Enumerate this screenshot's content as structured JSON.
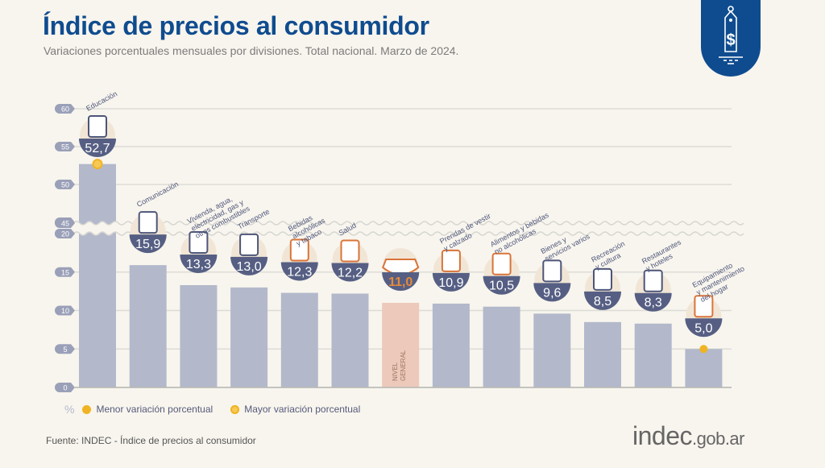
{
  "header": {
    "title": "Índice de precios al consumidor",
    "subtitle": "Variaciones porcentuales mensuales por divisiones. Total nacional. Marzo de 2024.",
    "badge_icon": "price-tag-dollar-icon"
  },
  "legend": {
    "unit": "%",
    "min_label": "Menor variación porcentual",
    "max_label": "Mayor variación porcentual"
  },
  "footer": {
    "source": "Fuente: INDEC - Índice de precios al consumidor",
    "logo_main": "indec",
    "logo_suffix": ".gob.ar"
  },
  "colors": {
    "title": "#0f4c8f",
    "bar": "#b3b9cb",
    "bar_general": "#ecc9bb",
    "bubble": "#565f83",
    "highlight_value": "#e58a3b",
    "marker": "#f0b323"
  },
  "chart_data": {
    "type": "bar",
    "title": "Índice de precios al consumidor",
    "subtitle": "Variaciones porcentuales mensuales por divisiones. Total nacional. Marzo de 2024.",
    "xlabel": "",
    "ylabel": "%",
    "ylim": [
      0,
      60
    ],
    "axis_break": [
      20,
      45
    ],
    "yticks": [
      0,
      5,
      10,
      15,
      20,
      45,
      50,
      55,
      60
    ],
    "grid": true,
    "legend_position": "bottom-left",
    "categories": [
      "Educación",
      "Comunicación",
      "Vivienda, agua, electricidad, gas y otros combustibles",
      "Transporte",
      "Bebidas alcohólicas y tabaco",
      "Salud",
      "NIVEL GENERAL",
      "Prendas de vestir y calzado",
      "Alimentos y bebidas no alcohólicas",
      "Bienes y servicios varios",
      "Recreación y cultura",
      "Restaurantes y hoteles",
      "Equipamiento y mantenimiento del hogar"
    ],
    "label_lines": [
      [
        "Educación"
      ],
      [
        "Comunicación"
      ],
      [
        "Vivienda, agua,",
        "electricidad, gas y",
        "otros combustibles"
      ],
      [
        "Transporte"
      ],
      [
        "Bebidas",
        "alcohólicas",
        "y tabaco"
      ],
      [
        "Salud"
      ],
      [
        "NIVEL",
        "GENERAL"
      ],
      [
        "Prendas de vestir",
        "y calzado"
      ],
      [
        "Alimentos y bebidas",
        "no alcohólicas"
      ],
      [
        "Bienes y",
        "servicios varios"
      ],
      [
        "Recreación",
        "y cultura"
      ],
      [
        "Restaurantes",
        "y hoteles"
      ],
      [
        "Equipamiento",
        "y mantenimiento",
        "del hogar"
      ]
    ],
    "values": [
      52.7,
      15.9,
      13.3,
      13.0,
      12.3,
      12.2,
      11.0,
      10.9,
      10.5,
      9.6,
      8.5,
      8.3,
      5.0
    ],
    "value_labels": [
      "52,7",
      "15,9",
      "13,3",
      "13,0",
      "12,3",
      "12,2",
      "11,0",
      "10,9",
      "10,5",
      "9,6",
      "8,5",
      "8,3",
      "5,0"
    ],
    "icons": [
      "notebook-pencil-icon",
      "smartphone-icon",
      "key-lightbulb-icon",
      "car-sube-card-icon",
      "wine-glass-cigarette-icon",
      "first-aid-kit-icon",
      "shopping-basket-icon",
      "tshirt-shoe-icon",
      "roast-chicken-icon",
      "comb-scissors-icon",
      "umbrella-sun-icon",
      "plate-cutlery-icon",
      "washing-machine-icon"
    ],
    "highlight_index": 6,
    "max_marker_index": 0,
    "min_marker_index": 12
  }
}
